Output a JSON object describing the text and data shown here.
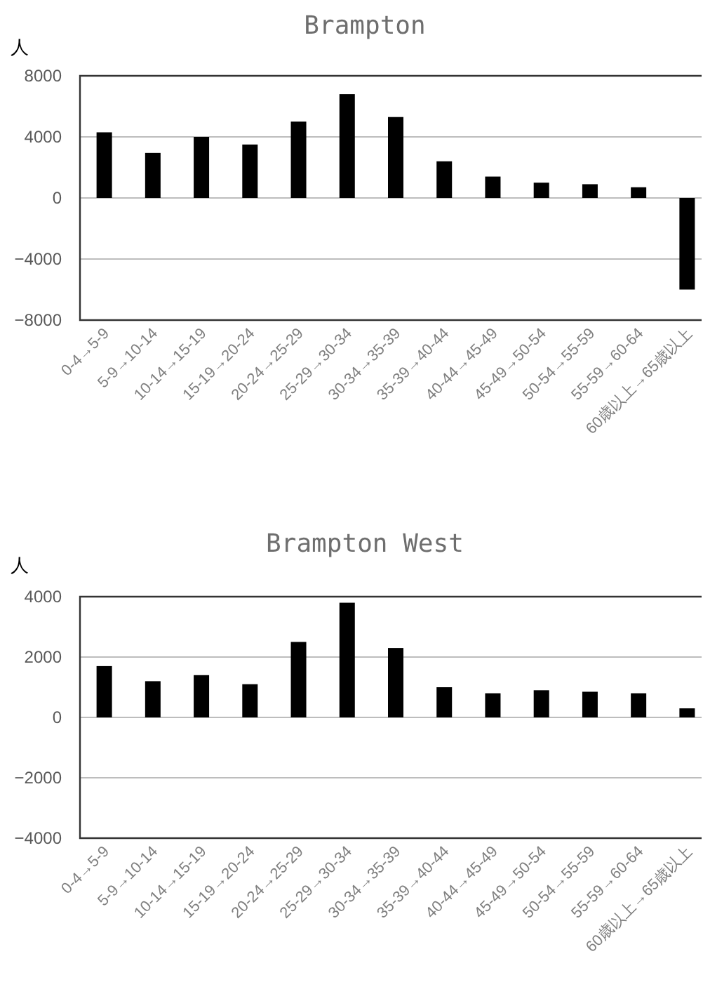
{
  "chart_data": [
    {
      "type": "bar",
      "title": "Brampton",
      "ylabel": "人",
      "categories": [
        "0-4→5-9",
        "5-9→10-14",
        "10-14→15-19",
        "15-19→20-24",
        "20-24→25-29",
        "25-29→30-34",
        "30-34→35-39",
        "35-39→40-44",
        "40-44→45-49",
        "45-49→50-54",
        "50-54→55-59",
        "55-59→60-64",
        "60歳以上→65歳以上"
      ],
      "values": [
        4300,
        2950,
        4000,
        3500,
        5000,
        6800,
        5300,
        2400,
        1400,
        1000,
        900,
        700,
        -6000
      ],
      "color": "#000000",
      "ylim": [
        -8000,
        8000
      ],
      "yticks": [
        -8000,
        -4000,
        0,
        4000,
        8000
      ],
      "grid": "y"
    },
    {
      "type": "bar",
      "title": "Brampton West",
      "ylabel": "人",
      "categories": [
        "0-4→5-9",
        "5-9→10-14",
        "10-14→15-19",
        "15-19→20-24",
        "20-24→25-29",
        "25-29→30-34",
        "30-34→35-39",
        "35-39→40-44",
        "40-44→45-49",
        "45-49→50-54",
        "50-54→55-59",
        "55-59→60-64",
        "60歳以上→65歳以上"
      ],
      "values": [
        1700,
        1200,
        1400,
        1100,
        2500,
        3800,
        2300,
        1000,
        800,
        900,
        850,
        800,
        300
      ],
      "color": "#000000",
      "ylim": [
        -4000,
        4000
      ],
      "yticks": [
        -4000,
        -2000,
        0,
        2000,
        4000
      ],
      "grid": "y"
    }
  ]
}
